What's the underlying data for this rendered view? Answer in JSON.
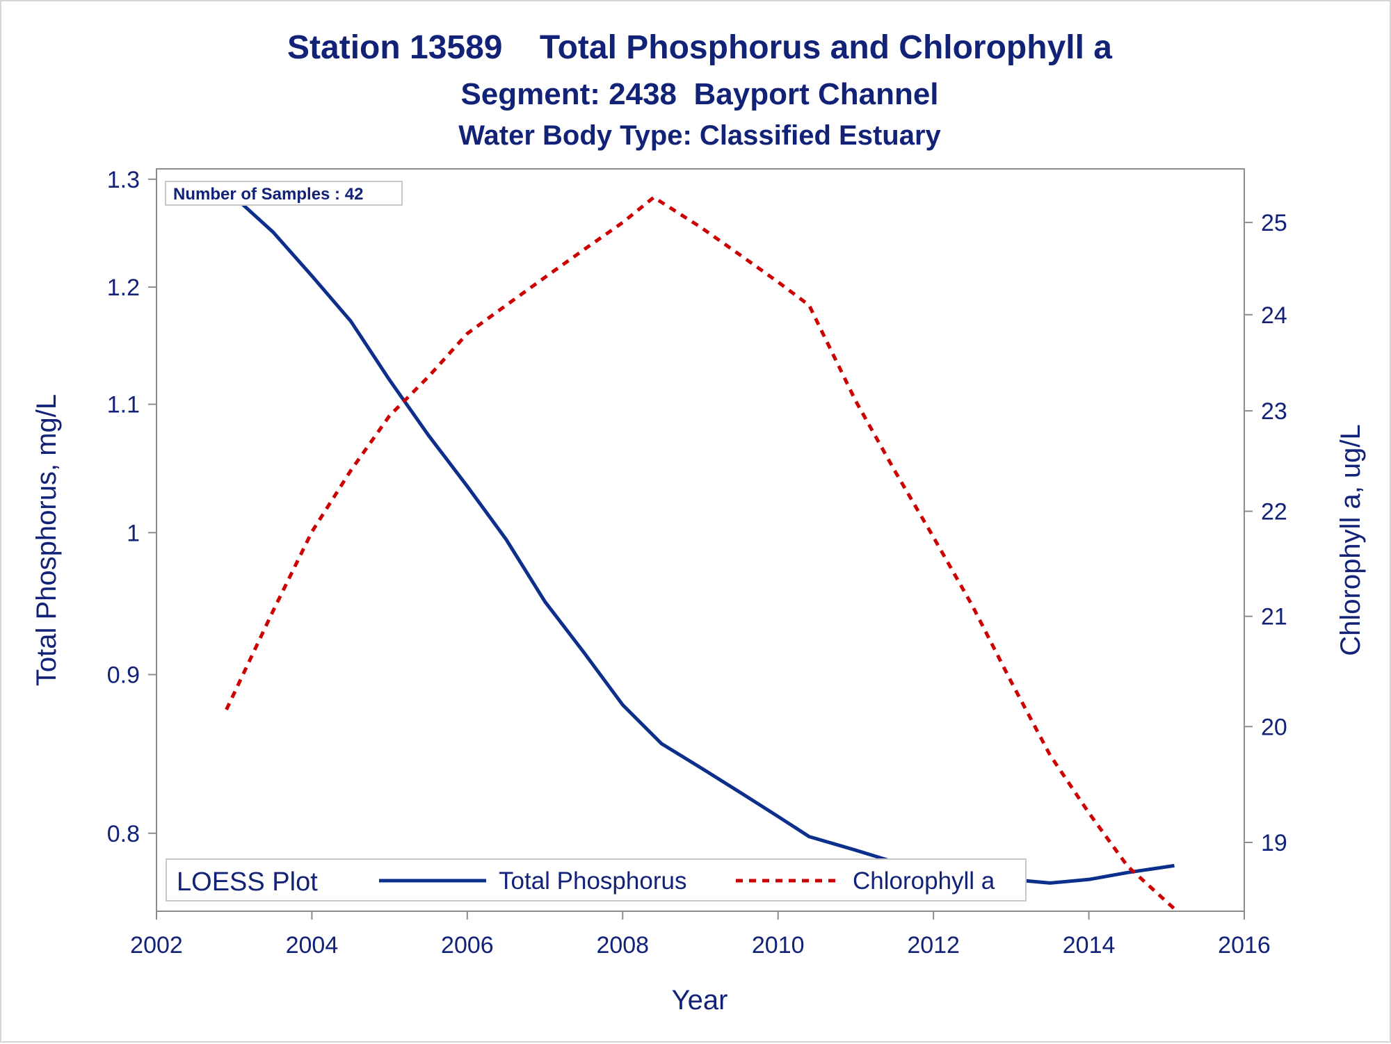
{
  "titles": {
    "line1": "Station 13589    Total Phosphorus and Chlorophyll a",
    "line2": "Segment: 2438  Bayport Channel",
    "line3": "Water Body Type: Classified Estuary"
  },
  "inset": {
    "text": "Number of Samples : 42"
  },
  "legend": {
    "title": "LOESS Plot",
    "position": "bottom-inside",
    "items": [
      {
        "label": "Total Phosphorus",
        "style": "solid",
        "color": "#0b2f8a"
      },
      {
        "label": "Chlorophyll a",
        "style": "dashed",
        "color": "#cc0000"
      }
    ]
  },
  "chart_data": {
    "type": "line",
    "title": "Station 13589    Total Phosphorus and Chlorophyll a",
    "subtitle": "Segment: 2438  Bayport Channel / Water Body Type: Classified Estuary",
    "xlabel": "Year",
    "ylabel": "Total Phosphorus, mg/L",
    "y2label": "Chlorophyll a, ug/L",
    "xlim": [
      2002,
      2016
    ],
    "ylim": [
      0.755,
      1.31
    ],
    "y_scale": "log",
    "y2lim": [
      18.43,
      25.6
    ],
    "y2_scale": "log",
    "grid": false,
    "x_ticks": [
      "2002",
      "2004",
      "2006",
      "2008",
      "2010",
      "2012",
      "2014",
      "2016"
    ],
    "y_ticks": [
      "0.8",
      "0.9",
      "1",
      "1.1",
      "1.2",
      "1.3"
    ],
    "y2_ticks": [
      "19",
      "20",
      "21",
      "22",
      "23",
      "24",
      "25"
    ],
    "series": [
      {
        "name": "Total Phosphorus",
        "axis": "left",
        "color": "#0b2f8a",
        "style": "solid",
        "points": [
          [
            2002.9,
            1.29
          ],
          [
            2003.5,
            1.25
          ],
          [
            2004.0,
            1.21
          ],
          [
            2004.5,
            1.17
          ],
          [
            2005.0,
            1.12
          ],
          [
            2005.5,
            1.075
          ],
          [
            2006.0,
            1.035
          ],
          [
            2006.5,
            0.995
          ],
          [
            2007.0,
            0.95
          ],
          [
            2007.5,
            0.915
          ],
          [
            2008.0,
            0.88
          ],
          [
            2008.5,
            0.855
          ],
          [
            2009.0,
            0.84
          ],
          [
            2009.5,
            0.825
          ],
          [
            2010.0,
            0.81
          ],
          [
            2010.4,
            0.798
          ],
          [
            2011.0,
            0.79
          ],
          [
            2011.5,
            0.783
          ],
          [
            2012.0,
            0.779
          ],
          [
            2012.5,
            0.776
          ],
          [
            2013.0,
            0.773
          ],
          [
            2013.5,
            0.771
          ],
          [
            2014.0,
            0.773
          ],
          [
            2014.5,
            0.777
          ],
          [
            2015.1,
            0.781
          ]
        ]
      },
      {
        "name": "Chlorophyll a",
        "axis": "right",
        "color": "#cc0000",
        "style": "dashed",
        "points": [
          [
            2002.9,
            20.15
          ],
          [
            2003.5,
            21.05
          ],
          [
            2004.0,
            21.8
          ],
          [
            2004.5,
            22.4
          ],
          [
            2005.0,
            22.95
          ],
          [
            2005.5,
            23.35
          ],
          [
            2006.0,
            23.8
          ],
          [
            2006.5,
            24.1
          ],
          [
            2007.0,
            24.4
          ],
          [
            2007.5,
            24.7
          ],
          [
            2008.0,
            25.0
          ],
          [
            2008.4,
            25.28
          ],
          [
            2009.0,
            24.95
          ],
          [
            2009.5,
            24.65
          ],
          [
            2010.0,
            24.35
          ],
          [
            2010.4,
            24.1
          ],
          [
            2011.0,
            23.1
          ],
          [
            2011.5,
            22.4
          ],
          [
            2012.0,
            21.75
          ],
          [
            2012.5,
            21.1
          ],
          [
            2013.0,
            20.4
          ],
          [
            2013.5,
            19.75
          ],
          [
            2014.0,
            19.25
          ],
          [
            2014.5,
            18.8
          ],
          [
            2015.1,
            18.45
          ]
        ]
      }
    ]
  }
}
